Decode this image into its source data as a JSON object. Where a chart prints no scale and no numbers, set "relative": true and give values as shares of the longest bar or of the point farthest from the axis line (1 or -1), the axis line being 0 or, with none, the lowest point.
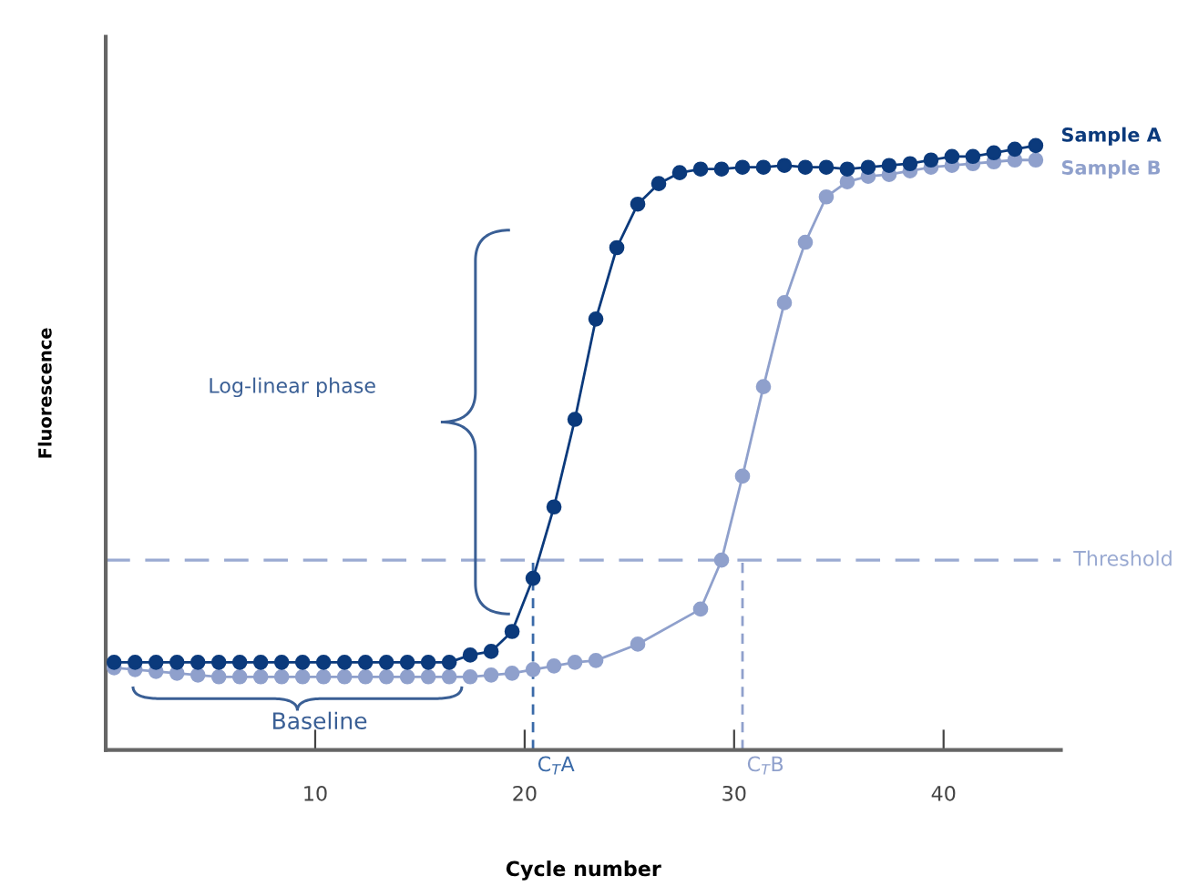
{
  "chart_data": {
    "type": "line",
    "xlabel": "Cycle number",
    "ylabel": "Fluorescence",
    "relative": true,
    "x": [
      0.4,
      1.4,
      2.4,
      3.4,
      4.4,
      5.4,
      6.4,
      7.4,
      8.4,
      9.4,
      10.4,
      11.4,
      12.4,
      13.4,
      14.4,
      15.4,
      16.4,
      17.4,
      18.4,
      19.4,
      20.4,
      21.4,
      22.4,
      23.4,
      24.4,
      25.4,
      26.4,
      27.4,
      28.4,
      29.4,
      30.4,
      31.4,
      32.4,
      33.4,
      34.4,
      35.4,
      36.4,
      37.4,
      38.4,
      39.4,
      40.4,
      41.4,
      42.4,
      43.4,
      44.4
    ],
    "series": [
      {
        "name": "Sample A",
        "color": "#0b3a7c",
        "values": [
          0.145,
          0.145,
          0.145,
          0.145,
          0.145,
          0.145,
          0.145,
          0.145,
          0.145,
          0.145,
          0.145,
          0.145,
          0.145,
          0.145,
          0.145,
          0.145,
          0.145,
          0.157,
          0.163,
          0.196,
          0.284,
          0.402,
          0.547,
          0.713,
          0.831,
          0.903,
          0.937,
          0.955,
          0.961,
          0.961,
          0.964,
          0.964,
          0.967,
          0.964,
          0.964,
          0.961,
          0.964,
          0.967,
          0.97,
          0.976,
          0.982,
          0.982,
          0.988,
          0.994,
          1
        ]
      },
      {
        "name": "Sample B",
        "color": "#8fa0cc",
        "x": [
          0.4,
          1.4,
          2.4,
          3.4,
          4.4,
          5.4,
          6.4,
          7.4,
          8.4,
          9.4,
          10.4,
          11.4,
          12.4,
          13.4,
          14.4,
          15.4,
          16.4,
          17.4,
          18.4,
          19.4,
          20.4,
          21.4,
          22.4,
          23.4,
          25.4,
          28.4,
          29.4,
          30.4,
          31.4,
          32.4,
          33.4,
          34.4,
          35.4,
          36.4,
          37.4,
          38.4,
          39.4,
          40.4,
          41.4,
          42.4,
          43.4,
          44.4
        ],
        "values": [
          0.136,
          0.133,
          0.13,
          0.127,
          0.124,
          0.121,
          0.121,
          0.121,
          0.121,
          0.121,
          0.121,
          0.121,
          0.121,
          0.121,
          0.121,
          0.121,
          0.121,
          0.121,
          0.124,
          0.127,
          0.133,
          0.139,
          0.145,
          0.148,
          0.175,
          0.233,
          0.314,
          0.453,
          0.601,
          0.74,
          0.84,
          0.915,
          0.94,
          0.949,
          0.952,
          0.958,
          0.964,
          0.967,
          0.97,
          0.973,
          0.976,
          0.976
        ]
      }
    ],
    "xlim": [
      0,
      45.6
    ],
    "xticks": [
      10,
      20,
      30,
      40
    ],
    "ref_lines": [
      {
        "axis": "y",
        "value": 0.314,
        "label": "Threshold",
        "color": "#9aaad2",
        "line_style": "dashed"
      },
      {
        "axis": "x",
        "value": 20.4,
        "label": "C$_{T}$A",
        "color": "#3a6aa8",
        "line_style": "dashed"
      },
      {
        "axis": "x",
        "value": 30.4,
        "label": "C$_{T}$B",
        "color": "#8fa0cc",
        "line_style": "dashed"
      }
    ],
    "annotations": [
      "Log-linear phase",
      "Baseline"
    ],
    "marker": "circle",
    "line_style": "solid",
    "legend": false,
    "grid": false
  }
}
